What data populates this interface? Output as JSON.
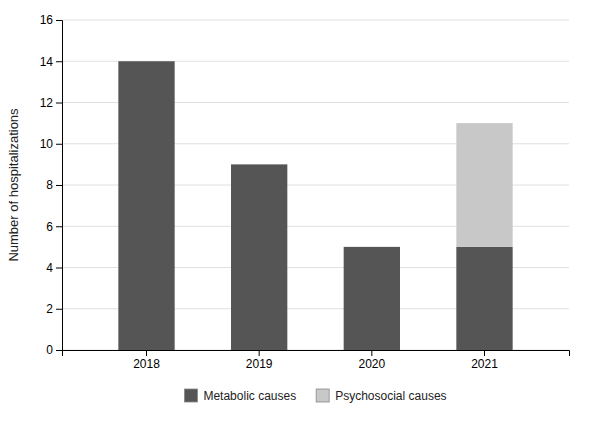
{
  "chart_data": {
    "type": "bar",
    "stacked": true,
    "categories": [
      "2018",
      "2019",
      "2020",
      "2021"
    ],
    "series": [
      {
        "name": "Metabolic causes",
        "color": "#555555",
        "values": [
          14,
          9,
          5,
          5
        ]
      },
      {
        "name": "Psychosocial causes",
        "color": "#c8c8c8",
        "values": [
          0,
          0,
          0,
          6
        ]
      }
    ],
    "ylabel": "Number of hospitalizations",
    "ylim": [
      0,
      16
    ],
    "yticks": [
      0,
      2,
      4,
      6,
      8,
      10,
      12,
      14,
      16
    ],
    "grid": true,
    "legend": "bottom"
  }
}
